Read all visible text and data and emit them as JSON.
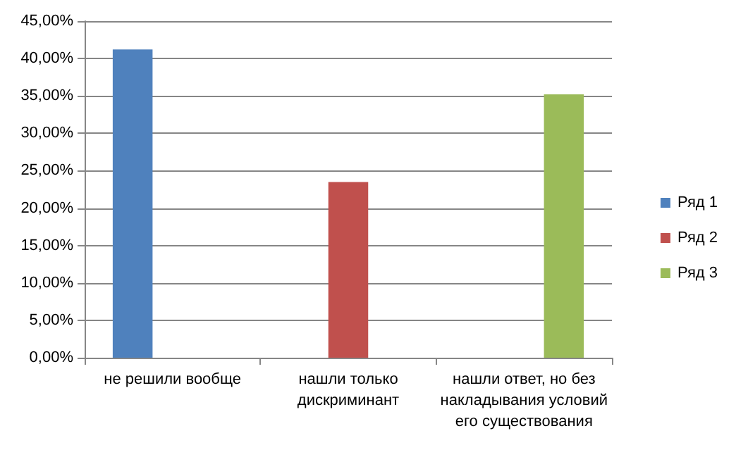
{
  "chart_data": {
    "type": "bar",
    "categories": [
      "не решили вообще",
      "нашли только дискриминант",
      "нашли ответ, но без накладывания условий его существования"
    ],
    "series": [
      {
        "name": "Ряд 1",
        "color": "#4f81bd",
        "values": [
          41.2,
          null,
          null
        ]
      },
      {
        "name": "Ряд 2",
        "color": "#c0504d",
        "values": [
          null,
          23.5,
          null
        ]
      },
      {
        "name": "Ряд 3",
        "color": "#9bbb59",
        "values": [
          null,
          null,
          35.2
        ]
      }
    ],
    "ylim": [
      0,
      45
    ],
    "yticks": [
      {
        "value": 0,
        "label": "0,00%"
      },
      {
        "value": 5,
        "label": "5,00%"
      },
      {
        "value": 10,
        "label": "10,00%"
      },
      {
        "value": 15,
        "label": "15,00%"
      },
      {
        "value": 20,
        "label": "20,00%"
      },
      {
        "value": 25,
        "label": "25,00%"
      },
      {
        "value": 30,
        "label": "30,00%"
      },
      {
        "value": 35,
        "label": "35,00%"
      },
      {
        "value": 40,
        "label": "40,00%"
      },
      {
        "value": 45,
        "label": "45,00%"
      }
    ],
    "grid": "y",
    "legend": "right"
  }
}
